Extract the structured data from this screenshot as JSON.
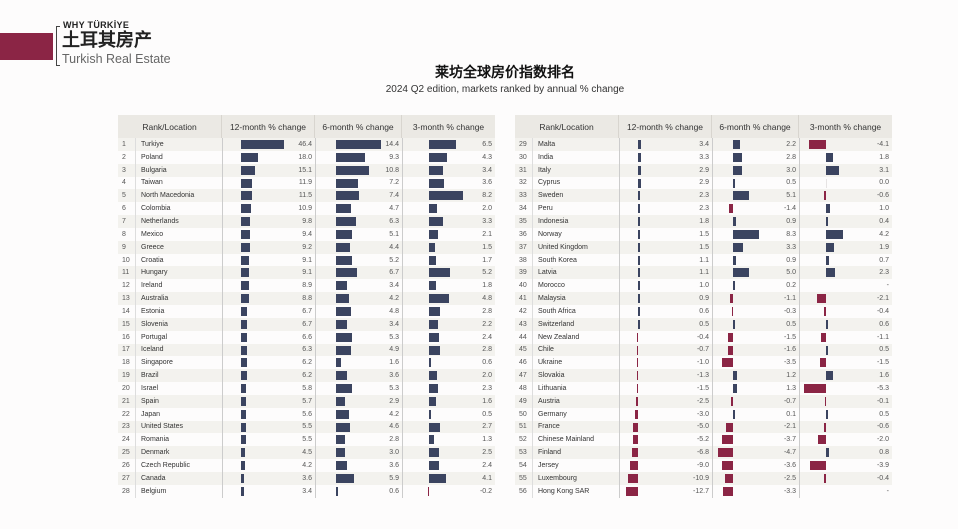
{
  "logo": {
    "tagline": "WHY TÜRKİYE",
    "name_cn": "土耳其房产",
    "name_en": "Turkish Real Estate"
  },
  "colors": {
    "positive": "#3b4460",
    "negative": "#8b2545"
  },
  "title": "莱坊全球房价指数排名",
  "subtitle": "2024 Q2 edition, markets ranked by annual % change",
  "headers": {
    "rank_location": "Rank/Location",
    "m12": "12-month % change",
    "m6": "6-month % change",
    "m3": "3-month % change"
  },
  "chart_data": {
    "type": "table",
    "title": "莱坊全球房价指数排名",
    "columns": [
      "Rank",
      "Location",
      "12-month % change",
      "6-month % change",
      "3-month % change"
    ],
    "rows": [
      [
        "1",
        "Turkiye",
        "46.4",
        "14.4",
        "6.5"
      ],
      [
        "2",
        "Poland",
        "18.0",
        "9.3",
        "4.3"
      ],
      [
        "3",
        "Bulgaria",
        "15.1",
        "10.8",
        "3.4"
      ],
      [
        "4",
        "Taiwan",
        "11.9",
        "7.2",
        "3.6"
      ],
      [
        "5",
        "North Macedonia",
        "11.5",
        "7.4",
        "8.2"
      ],
      [
        "6",
        "Colombia",
        "10.9",
        "4.7",
        "2.0"
      ],
      [
        "7",
        "Netherlands",
        "9.8",
        "6.3",
        "3.3"
      ],
      [
        "8",
        "Mexico",
        "9.4",
        "5.1",
        "2.1"
      ],
      [
        "9",
        "Greece",
        "9.2",
        "4.4",
        "1.5"
      ],
      [
        "10",
        "Croatia",
        "9.1",
        "5.2",
        "1.7"
      ],
      [
        "11",
        "Hungary",
        "9.1",
        "6.7",
        "5.2"
      ],
      [
        "12",
        "Ireland",
        "8.9",
        "3.4",
        "1.8"
      ],
      [
        "13",
        "Australia",
        "8.8",
        "4.2",
        "4.8"
      ],
      [
        "14",
        "Estonia",
        "6.7",
        "4.8",
        "2.8"
      ],
      [
        "15",
        "Slovenia",
        "6.7",
        "3.4",
        "2.2"
      ],
      [
        "16",
        "Portugal",
        "6.6",
        "5.3",
        "2.4"
      ],
      [
        "17",
        "Iceland",
        "6.3",
        "4.9",
        "2.8"
      ],
      [
        "18",
        "Singapore",
        "6.2",
        "1.6",
        "0.6"
      ],
      [
        "19",
        "Brazil",
        "6.2",
        "3.6",
        "2.0"
      ],
      [
        "20",
        "Israel",
        "5.8",
        "5.3",
        "2.3"
      ],
      [
        "21",
        "Spain",
        "5.7",
        "2.9",
        "1.6"
      ],
      [
        "22",
        "Japan",
        "5.6",
        "4.2",
        "0.5"
      ],
      [
        "23",
        "United States",
        "5.5",
        "4.6",
        "2.7"
      ],
      [
        "24",
        "Romania",
        "5.5",
        "2.8",
        "1.3"
      ],
      [
        "25",
        "Denmark",
        "4.5",
        "3.0",
        "2.5"
      ],
      [
        "26",
        "Czech Republic",
        "4.2",
        "3.6",
        "2.4"
      ],
      [
        "27",
        "Canada",
        "3.6",
        "5.9",
        "4.1"
      ],
      [
        "28",
        "Belgium",
        "3.4",
        "0.6",
        "-0.2"
      ],
      [
        "29",
        "Malta",
        "3.4",
        "2.2",
        "-4.1"
      ],
      [
        "30",
        "India",
        "3.3",
        "2.8",
        "1.8"
      ],
      [
        "31",
        "Italy",
        "2.9",
        "3.0",
        "3.1"
      ],
      [
        "32",
        "Cyprus",
        "2.9",
        "0.5",
        "0.0"
      ],
      [
        "33",
        "Sweden",
        "2.3",
        "5.1",
        "-0.6"
      ],
      [
        "34",
        "Peru",
        "2.3",
        "-1.4",
        "1.0"
      ],
      [
        "35",
        "Indonesia",
        "1.8",
        "0.9",
        "0.4"
      ],
      [
        "36",
        "Norway",
        "1.5",
        "8.3",
        "4.2"
      ],
      [
        "37",
        "United Kingdom",
        "1.5",
        "3.3",
        "1.9"
      ],
      [
        "38",
        "South Korea",
        "1.1",
        "0.9",
        "0.7"
      ],
      [
        "39",
        "Latvia",
        "1.1",
        "5.0",
        "2.3"
      ],
      [
        "40",
        "Morocco",
        "1.0",
        "0.2",
        "-"
      ],
      [
        "41",
        "Malaysia",
        "0.9",
        "-1.1",
        "-2.1"
      ],
      [
        "42",
        "South Africa",
        "0.6",
        "-0.3",
        "-0.4"
      ],
      [
        "43",
        "Switzerland",
        "0.5",
        "0.5",
        "0.6"
      ],
      [
        "44",
        "New Zealand",
        "-0.4",
        "-1.5",
        "-1.1"
      ],
      [
        "45",
        "Chile",
        "-0.7",
        "-1.6",
        "0.5"
      ],
      [
        "46",
        "Ukraine",
        "-1.0",
        "-3.5",
        "-1.5"
      ],
      [
        "47",
        "Slovakia",
        "-1.3",
        "1.2",
        "1.6"
      ],
      [
        "48",
        "Lithuania",
        "-1.5",
        "1.3",
        "-5.3"
      ],
      [
        "49",
        "Austria",
        "-2.5",
        "-0.7",
        "-0.1"
      ],
      [
        "50",
        "Germany",
        "-3.0",
        "0.1",
        "0.5"
      ],
      [
        "51",
        "France",
        "-5.0",
        "-2.1",
        "-0.6"
      ],
      [
        "52",
        "Chinese Mainland",
        "-5.2",
        "-3.7",
        "-2.0"
      ],
      [
        "53",
        "Finland",
        "-6.8",
        "-4.7",
        "0.8"
      ],
      [
        "54",
        "Jersey",
        "-9.0",
        "-3.6",
        "-3.9"
      ],
      [
        "55",
        "Luxembourg",
        "-10.9",
        "-2.5",
        "-0.4"
      ],
      [
        "56",
        "Hong Kong SAR",
        "-12.7",
        "-3.3",
        "-"
      ]
    ]
  }
}
